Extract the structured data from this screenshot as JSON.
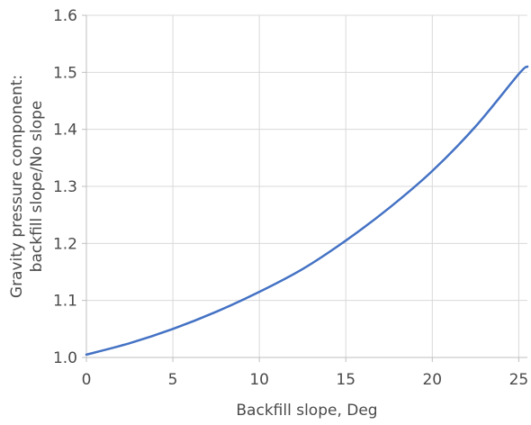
{
  "chart_data": {
    "type": "line",
    "title": "",
    "xlabel": "Backfill slope, Deg",
    "ylabel_lines": [
      "Gravity pressure component:",
      "backfill slope/No slope"
    ],
    "xlim": [
      0,
      25.5
    ],
    "ylim": [
      1.0,
      1.6
    ],
    "x_ticks": [
      0,
      5,
      10,
      15,
      20,
      25
    ],
    "x_tick_labels": [
      "0",
      "5",
      "10",
      "15",
      "20",
      "25"
    ],
    "y_ticks": [
      1.0,
      1.1,
      1.2,
      1.3,
      1.4,
      1.5,
      1.6
    ],
    "y_tick_labels": [
      "1.0",
      "1.1",
      "1.2",
      "1.3",
      "1.4",
      "1.5",
      "1.6"
    ],
    "grid": true,
    "legend": "none",
    "series": [
      {
        "color": "#4472c4",
        "x": [
          0,
          2.5,
          5,
          7.5,
          10,
          12.5,
          15,
          17.5,
          20,
          22.5,
          25,
          25.5
        ],
        "y": [
          1.005,
          1.025,
          1.05,
          1.08,
          1.115,
          1.155,
          1.205,
          1.262,
          1.327,
          1.405,
          1.497,
          1.51
        ]
      }
    ]
  }
}
